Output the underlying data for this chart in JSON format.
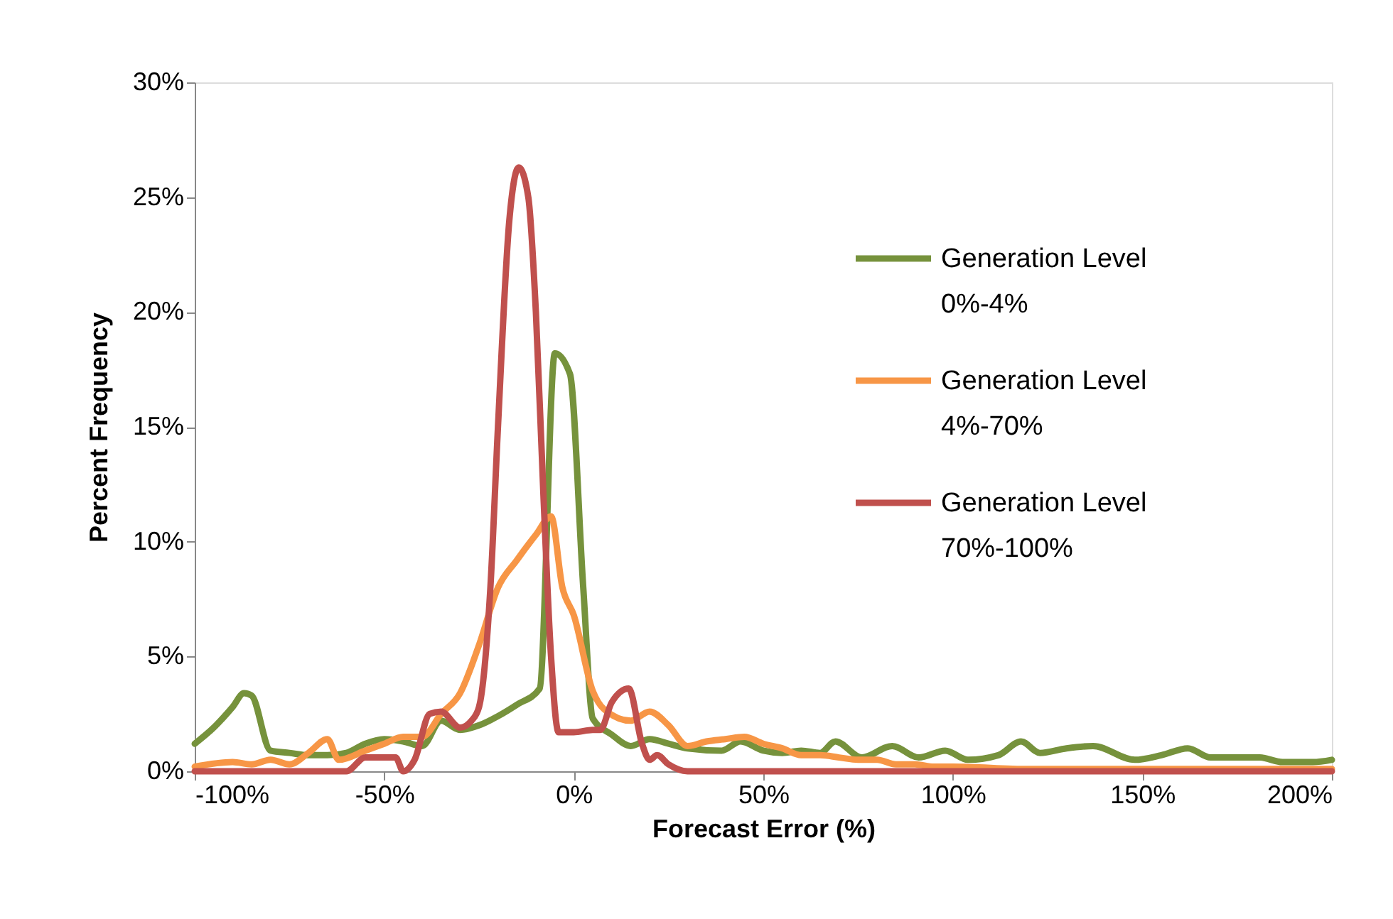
{
  "chart_data": {
    "type": "line",
    "xlabel": "Forecast Error (%)",
    "ylabel": "Percent Frequency",
    "xlim": [
      -100,
      200
    ],
    "ylim": [
      0,
      30
    ],
    "xticks": [
      {
        "value": -100,
        "label": "-100%"
      },
      {
        "value": -50,
        "label": "-50%"
      },
      {
        "value": 0,
        "label": "0%"
      },
      {
        "value": 50,
        "label": "50%"
      },
      {
        "value": 100,
        "label": "100%"
      },
      {
        "value": 150,
        "label": "150%"
      },
      {
        "value": 200,
        "label": "200%"
      }
    ],
    "yticks": [
      {
        "value": 0,
        "label": "0%"
      },
      {
        "value": 5,
        "label": "5%"
      },
      {
        "value": 10,
        "label": "10%"
      },
      {
        "value": 15,
        "label": "15%"
      },
      {
        "value": 20,
        "label": "20%"
      },
      {
        "value": 25,
        "label": "25%"
      },
      {
        "value": 30,
        "label": "30%"
      }
    ],
    "grid": false,
    "legend": "right",
    "marker": "none",
    "line_style": "solid",
    "series": [
      {
        "name": "Generation Level 0%-4%",
        "color": "#76923c",
        "x": [
          -100,
          -95,
          -90,
          -87,
          -85,
          -80,
          -75,
          -70,
          -65,
          -60,
          -55,
          -50,
          -45,
          -40,
          -35,
          -30,
          -25,
          -20,
          -15,
          -9,
          -5,
          -1,
          2.5,
          5,
          10,
          15,
          20,
          25,
          30,
          39,
          44,
          50,
          55,
          60,
          65,
          69,
          76,
          84,
          91,
          98,
          104,
          112,
          118,
          123,
          130,
          137,
          148,
          155,
          162,
          168,
          175,
          181,
          187,
          195,
          200
        ],
        "values": [
          1.2,
          1.9,
          2.8,
          3.4,
          3.3,
          0.9,
          0.8,
          0.7,
          0.7,
          0.8,
          1.2,
          1.4,
          1.3,
          1.1,
          2.2,
          1.8,
          2.0,
          2.4,
          2.9,
          3.6,
          18.2,
          17.3,
          8.0,
          2.3,
          1.6,
          1.1,
          1.4,
          1.2,
          1.0,
          0.9,
          1.3,
          0.9,
          0.8,
          0.9,
          0.8,
          1.3,
          0.6,
          1.1,
          0.6,
          0.9,
          0.5,
          0.7,
          1.3,
          0.8,
          1.0,
          1.1,
          0.5,
          0.7,
          1.0,
          0.6,
          0.6,
          0.6,
          0.4,
          0.4,
          0.5
        ]
      },
      {
        "name": "Generation Level 4%-70%",
        "color": "#f79646",
        "x": [
          -100,
          -90,
          -85,
          -80,
          -75,
          -70,
          -65,
          -62,
          -55,
          -50,
          -45,
          -40,
          -35,
          -30,
          -25,
          -20,
          -15,
          -10,
          -6,
          -3,
          0,
          5,
          8,
          15,
          20,
          25,
          30,
          35,
          40,
          45,
          50,
          55,
          60,
          65,
          70,
          75,
          80,
          85,
          90,
          95,
          100,
          120,
          140,
          160,
          180,
          200
        ],
        "values": [
          0.2,
          0.4,
          0.3,
          0.5,
          0.3,
          0.8,
          1.4,
          0.5,
          0.9,
          1.2,
          1.5,
          1.5,
          2.5,
          3.4,
          5.5,
          8.0,
          9.2,
          10.3,
          11.1,
          8.0,
          6.8,
          3.5,
          2.7,
          2.2,
          2.6,
          2.0,
          1.1,
          1.3,
          1.4,
          1.5,
          1.2,
          1.0,
          0.7,
          0.7,
          0.6,
          0.5,
          0.5,
          0.3,
          0.3,
          0.2,
          0.2,
          0.1,
          0.1,
          0.1,
          0.1,
          0.1
        ]
      },
      {
        "name": "Generation Level 70%-100%",
        "color": "#c0504d",
        "x": [
          -100,
          -90,
          -80,
          -70,
          -60,
          -55,
          -50,
          -47,
          -45,
          -42,
          -38,
          -35,
          -30,
          -27,
          -25,
          -22,
          -20,
          -17,
          -14.5,
          -12,
          -10,
          -8,
          -6,
          -4,
          0,
          5,
          7,
          10,
          14.5,
          18,
          20,
          22,
          25,
          30,
          50,
          100,
          150,
          200
        ],
        "values": [
          0,
          0,
          0,
          0,
          0,
          0.6,
          0.6,
          0.6,
          0,
          0.5,
          2.5,
          2.6,
          1.9,
          2.2,
          2.8,
          8.0,
          15.0,
          24.0,
          26.3,
          25.0,
          20.0,
          12.0,
          5.0,
          1.7,
          1.7,
          1.8,
          1.8,
          3.0,
          3.6,
          1.2,
          0.5,
          0.7,
          0.3,
          0,
          0,
          0,
          0,
          0
        ]
      }
    ]
  }
}
